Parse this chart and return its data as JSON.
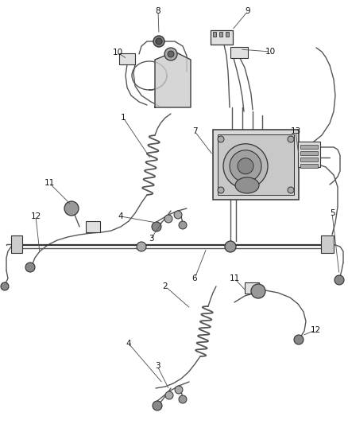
{
  "bg_color": "#ffffff",
  "line_color": "#555555",
  "dark_color": "#333333",
  "fig_width": 4.38,
  "fig_height": 5.33,
  "dpi": 100,
  "lw": 1.0,
  "lw_thick": 1.6,
  "lw_thin": 0.7,
  "coil_color": "#666666",
  "part_fill": "#e0e0e0",
  "part_edge": "#444444"
}
